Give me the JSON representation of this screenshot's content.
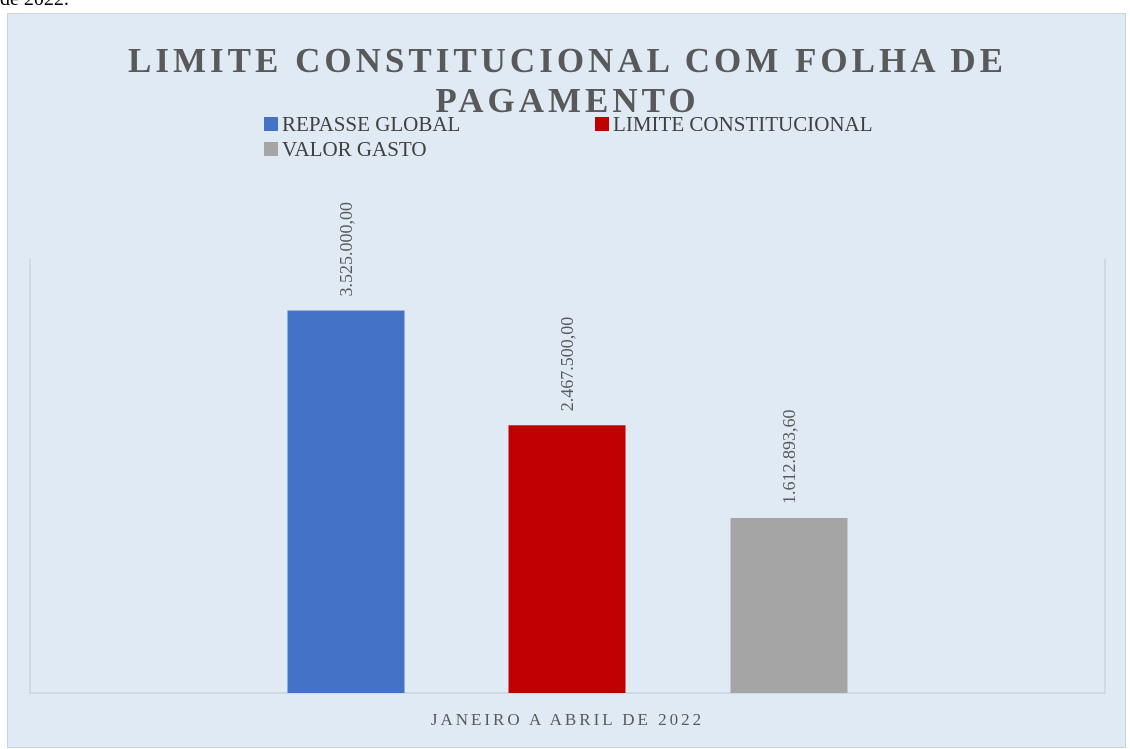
{
  "page_prefix_text": "de 2022.",
  "chart_data": {
    "type": "bar",
    "title": "LIMITE CONSTITUCIONAL COM FOLHA DE PAGAMENTO",
    "categories": [
      "JANEIRO A ABRIL DE 2022"
    ],
    "series": [
      {
        "name": "REPASSE GLOBAL",
        "values": [
          3525000.0
        ],
        "label": "3.525.000,00",
        "color": "#4472c4"
      },
      {
        "name": "LIMITE CONSTITUCIONAL",
        "values": [
          2467500.0
        ],
        "label": "2.467.500,00",
        "color": "#c00000"
      },
      {
        "name": "VALOR GASTO",
        "values": [
          1612893.6
        ],
        "label": "1.612.893,60",
        "color": "#a5a5a5"
      }
    ],
    "ylim": [
      0,
      4000000
    ],
    "grid": false,
    "legend_position": "top"
  }
}
